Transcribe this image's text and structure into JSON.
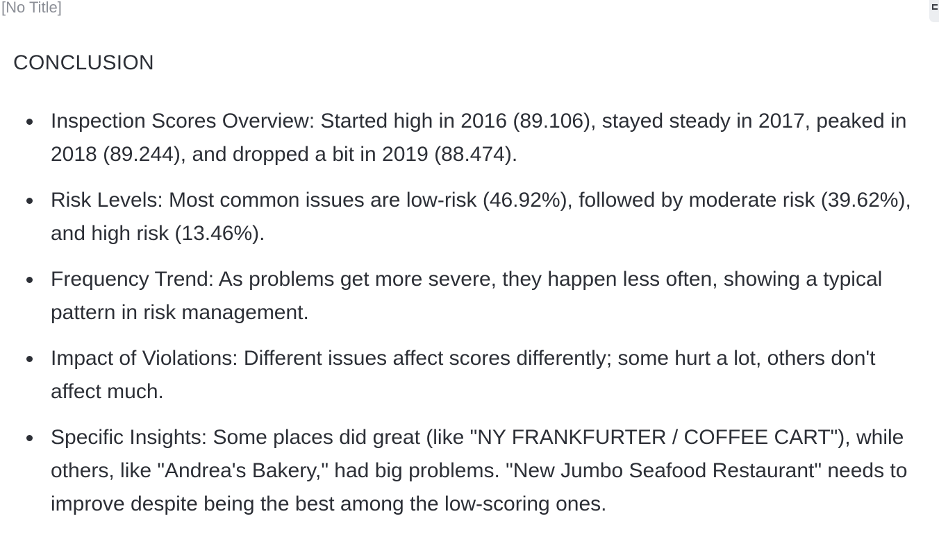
{
  "window": {
    "title": "[No Title]"
  },
  "content": {
    "heading": "CONCLUSION",
    "points": [
      "Inspection Scores Overview: Started high in 2016 (89.106), stayed steady in 2017, peaked in 2018 (89.244), and dropped a bit in 2019 (88.474).",
      "Risk Levels: Most common issues are low-risk (46.92%), followed by moderate risk (39.62%), and high risk (13.46%).",
      "Frequency Trend: As problems get more severe, they happen less often, showing a typical pattern in risk management.",
      "Impact of Violations: Different issues affect scores differently; some hurt a lot, others don't affect much.",
      "Specific Insights: Some places did great (like \"NY FRANKFURTER / COFFEE CART\"), while others, like \"Andrea's Bakery,\" had big problems. \"New Jumbo Seafood Restaurant\" needs to improve despite being the best among the low-scoring ones."
    ]
  }
}
